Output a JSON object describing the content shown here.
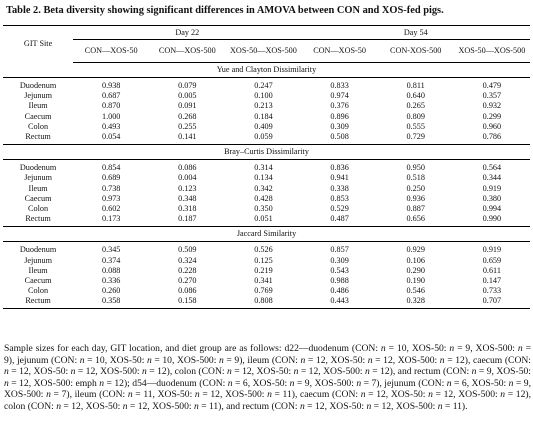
{
  "caption": {
    "label": "Table 2.",
    "text": "Beta diversity showing significant differences in AMOVA between CON and XOS-fed pigs."
  },
  "header": {
    "site_label": "GIT Site",
    "days": [
      "Day 22",
      "Day 54"
    ],
    "groups": [
      "CON—XOS-50",
      "CON—XOS-500",
      "XOS-50—XOS-500",
      "CON—XOS-50",
      "CON-XOS-500",
      "XOS-50—XOS-500"
    ]
  },
  "sections": [
    {
      "title": "Yue and Clayton Dissimilarity",
      "rows": [
        {
          "site": "Duodenum",
          "values": [
            "0.938",
            "0.079",
            "0.247",
            "0.833",
            "0.811",
            "0.479"
          ]
        },
        {
          "site": "Jejunum",
          "values": [
            "0.687",
            "0.005",
            "0.100",
            "0.974",
            "0.640",
            "0.357"
          ]
        },
        {
          "site": "Ileum",
          "values": [
            "0.870",
            "0.091",
            "0.213",
            "0.376",
            "0.265",
            "0.932"
          ]
        },
        {
          "site": "Caecum",
          "values": [
            "1.000",
            "0.268",
            "0.184",
            "0.896",
            "0.809",
            "0.299"
          ]
        },
        {
          "site": "Colon",
          "values": [
            "0.493",
            "0.255",
            "0.409",
            "0.309",
            "0.555",
            "0.960"
          ]
        },
        {
          "site": "Rectum",
          "values": [
            "0.054",
            "0.141",
            "0.059",
            "0.508",
            "0.729",
            "0.786"
          ]
        }
      ]
    },
    {
      "title": "Bray–Curtis Dissimilarity",
      "rows": [
        {
          "site": "Duodenum",
          "values": [
            "0.854",
            "0.086",
            "0.314",
            "0.836",
            "0.950",
            "0.564"
          ]
        },
        {
          "site": "Jejunum",
          "values": [
            "0.689",
            "0.004",
            "0.134",
            "0.941",
            "0.518",
            "0.344"
          ]
        },
        {
          "site": "Ileum",
          "values": [
            "0.738",
            "0.123",
            "0.342",
            "0.338",
            "0.250",
            "0.919"
          ]
        },
        {
          "site": "Caecum",
          "values": [
            "0.973",
            "0.348",
            "0.428",
            "0.853",
            "0.936",
            "0.380"
          ]
        },
        {
          "site": "Colon",
          "values": [
            "0.602",
            "0.318",
            "0.350",
            "0.529",
            "0.887",
            "0.994"
          ]
        },
        {
          "site": "Rectum",
          "values": [
            "0.173",
            "0.187",
            "0.051",
            "0.487",
            "0.656",
            "0.990"
          ]
        }
      ]
    },
    {
      "title": "Jaccard Similarity",
      "rows": [
        {
          "site": "Duodenum",
          "values": [
            "0.345",
            "0.509",
            "0.526",
            "0.857",
            "0.929",
            "0.919"
          ]
        },
        {
          "site": "Jejunum",
          "values": [
            "0.374",
            "0.324",
            "0.125",
            "0.309",
            "0.106",
            "0.659"
          ]
        },
        {
          "site": "Ileum",
          "values": [
            "0.088",
            "0.228",
            "0.219",
            "0.543",
            "0.290",
            "0.611"
          ]
        },
        {
          "site": "Caecum",
          "values": [
            "0.336",
            "0.270",
            "0.341",
            "0.988",
            "0.190",
            "0.147"
          ]
        },
        {
          "site": "Colon",
          "values": [
            "0.260",
            "0.086",
            "0.769",
            "0.486",
            "0.546",
            "0.733"
          ]
        },
        {
          "site": "Rectum",
          "values": [
            "0.358",
            "0.158",
            "0.808",
            "0.443",
            "0.328",
            "0.707"
          ]
        }
      ]
    }
  ],
  "footnote": "Sample sizes for each day, GIT location, and diet group are as follows: d22—duodenum (CON: n = 10, XOS-50: n = 9, XOS-500: n = 9), jejunum (CON: n = 10, XOS-50: n = 10, XOS-500: n = 9), ileum (CON: n = 12, XOS-50: n = 12, XOS-500: n = 12), caecum (CON: n = 12, XOS-50: n = 12, XOS-500: n = 12), colon (CON: n = 12, XOS-50: n = 12, XOS-500: n = 12), and rectum (CON: n = 9, XOS-50: n = 12, XOS-500: emph n = 12); d54—duodenum (CON: n = 6, XOS-50: n = 9, XOS-500: n = 7), jejunum (CON: n = 6, XOS-50: n = 9, XOS-500: n = 7), ileum (CON: n = 11, XOS-50: n = 12, XOS-500: n = 11), caecum (CON: n = 12, XOS-50: n = 12, XOS-500: n = 12), colon (CON: n = 12, XOS-50: n = 12, XOS-500: n = 11), and rectum (CON: n = 12, XOS-50: n = 12, XOS-500: n = 11)."
}
